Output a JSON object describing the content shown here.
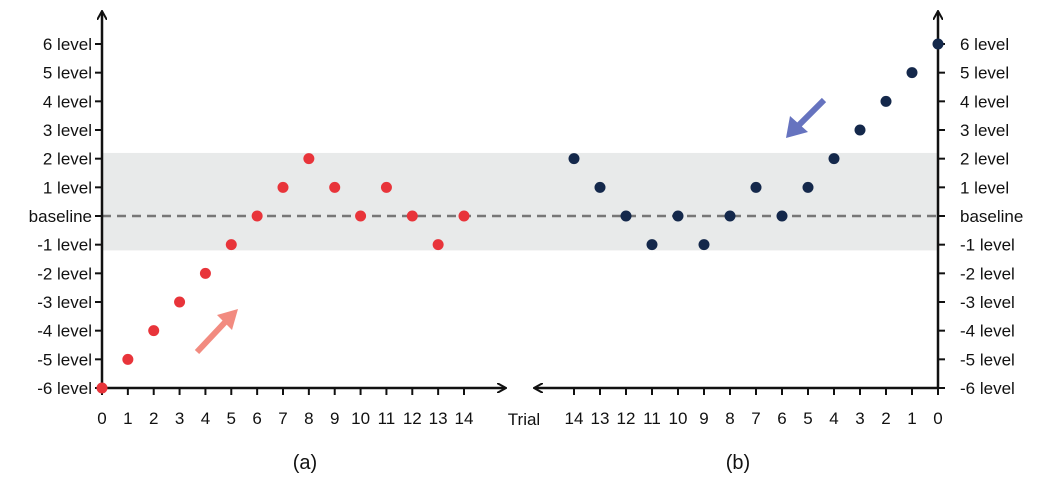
{
  "chart_data": [
    {
      "type": "scatter",
      "caption": "(a)",
      "x_ticks": [
        "0",
        "1",
        "2",
        "3",
        "4",
        "5",
        "6",
        "7",
        "8",
        "9",
        "10",
        "11",
        "12",
        "13",
        "14"
      ],
      "y_ticks": [
        "6 level",
        "5 level",
        "4 level",
        "3 level",
        "2 level",
        "1 level",
        "baseline",
        "-1 level",
        "-2 level",
        "-3 level",
        "-4 level",
        "-5 level",
        "-6 level"
      ],
      "xlim": [
        0,
        14
      ],
      "ylim": [
        -6,
        6
      ],
      "baseline": 0,
      "band": [
        -1.2,
        2.2
      ],
      "series": [
        {
          "color": "#e8343a",
          "x": [
            0,
            1,
            2,
            3,
            4,
            5,
            6,
            7,
            8,
            9,
            10,
            11,
            12,
            13,
            14
          ],
          "y": [
            -6,
            -5,
            -4,
            -3,
            -2,
            -1,
            0,
            1,
            2,
            1,
            0,
            1,
            0,
            -1,
            0
          ]
        }
      ],
      "arrow_direction": "up-right",
      "arrow_color": "#f28b80"
    },
    {
      "type": "scatter",
      "caption": "(b)",
      "axis_title": "Trial",
      "x_ticks": [
        "14",
        "13",
        "12",
        "11",
        "10",
        "9",
        "8",
        "7",
        "6",
        "5",
        "4",
        "3",
        "2",
        "1",
        "0"
      ],
      "y_ticks": [
        "6 level",
        "5 level",
        "4 level",
        "3 level",
        "2 level",
        "1 level",
        "baseline",
        "-1 level",
        "-2 level",
        "-3 level",
        "-4 level",
        "-5 level",
        "-6 level"
      ],
      "xlim": [
        14,
        0
      ],
      "ylim": [
        -6,
        6
      ],
      "baseline": 0,
      "band": [
        -1.2,
        2.2
      ],
      "series": [
        {
          "color": "#14284b",
          "x": [
            14,
            13,
            12,
            11,
            10,
            9,
            8,
            7,
            6,
            5,
            4,
            3,
            2,
            1,
            0
          ],
          "y": [
            2,
            1,
            0,
            -1,
            0,
            -1,
            0,
            1,
            0,
            1,
            2,
            3,
            4,
            5,
            6
          ]
        }
      ],
      "arrow_direction": "down-left",
      "arrow_color": "#6673bf"
    }
  ]
}
